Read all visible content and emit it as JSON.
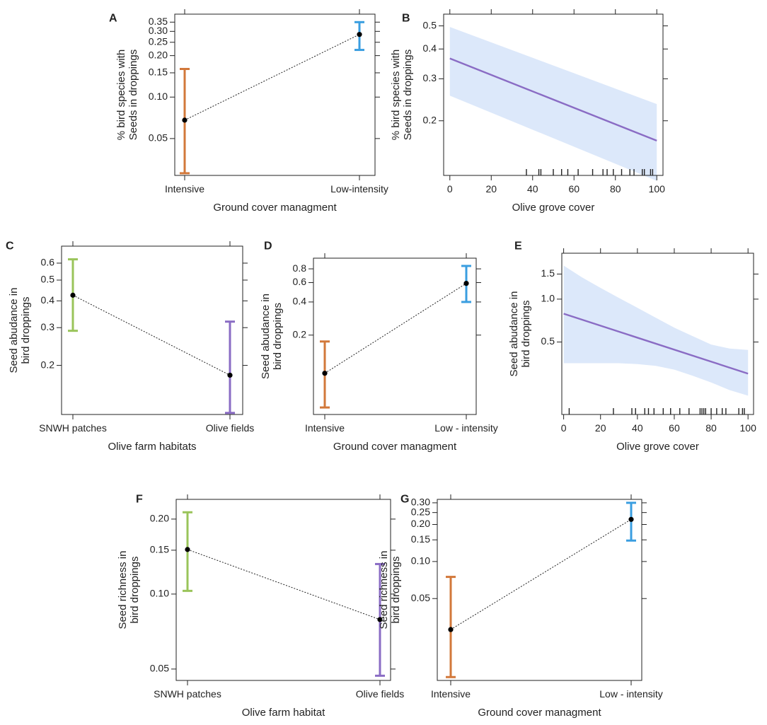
{
  "colors": {
    "orange": "#d2783a",
    "blue": "#3a9ee0",
    "green": "#9ac45a",
    "purple": "#8a6cc4",
    "line": "#8a6cc4",
    "band": "#dce8fa",
    "ink": "#222222"
  },
  "chart_data": [
    {
      "id": "A",
      "panel": "A",
      "type": "errorbar",
      "yscale": "log",
      "xlabel": "Ground cover managment",
      "ylabel_lines": [
        "% bird species with",
        "Seeds in droppings"
      ],
      "categories": [
        "Intensive",
        "Low-intensity"
      ],
      "values": [
        0.068,
        0.285
      ],
      "lower": [
        0.028,
        0.22
      ],
      "upper": [
        0.16,
        0.35
      ],
      "bar_colors": [
        "orange",
        "blue"
      ],
      "ylim": [
        0.027,
        0.4
      ],
      "yticks": [
        0.05,
        0.1,
        0.15,
        0.2,
        0.25,
        0.3,
        0.35
      ],
      "ytick_labels": [
        "0.05",
        "0.10",
        "0.15",
        "0.20",
        "0.25",
        "0.30",
        "0.35"
      ]
    },
    {
      "id": "B",
      "panel": "B",
      "type": "line",
      "yscale": "log",
      "xlabel": "Olive grove cover",
      "ylabel_lines": [
        "% bird species with",
        "Seeds in droppings"
      ],
      "xlim": [
        -3,
        103
      ],
      "xticks": [
        0,
        20,
        40,
        60,
        80,
        100
      ],
      "xtick_labels": [
        "0",
        "20",
        "40",
        "60",
        "80",
        "100"
      ],
      "ylim": [
        0.118,
        0.56
      ],
      "yticks": [
        0.2,
        0.3,
        0.4,
        0.5
      ],
      "ytick_labels": [
        "0.2",
        "0.3",
        "0.4",
        "0.5"
      ],
      "fit": {
        "x": [
          0,
          100
        ],
        "y": [
          0.365,
          0.165
        ]
      },
      "band": {
        "x": [
          0,
          100
        ],
        "lower": [
          0.255,
          0.112
        ],
        "upper": [
          0.495,
          0.235
        ]
      },
      "rug": [
        37,
        43,
        44,
        50,
        54,
        57,
        62,
        69,
        74,
        76,
        79,
        83,
        87,
        89,
        93,
        94,
        97,
        98
      ]
    },
    {
      "id": "C",
      "panel": "C",
      "type": "errorbar",
      "yscale": "log",
      "xlabel": "Olive farm habitats",
      "ylabel_lines": [
        "Seed abudance in",
        "bird droppings"
      ],
      "categories": [
        "SNWH patches",
        "Olive fields"
      ],
      "values": [
        0.425,
        0.18
      ],
      "lower": [
        0.29,
        0.12
      ],
      "upper": [
        0.625,
        0.32
      ],
      "bar_colors": [
        "green",
        "purple"
      ],
      "ylim": [
        0.118,
        0.72
      ],
      "yticks": [
        0.2,
        0.3,
        0.4,
        0.5,
        0.6
      ],
      "ytick_labels": [
        "0.2",
        "0.3",
        "0.4",
        "0.5",
        "0.6"
      ]
    },
    {
      "id": "D",
      "panel": "D",
      "type": "errorbar",
      "yscale": "log",
      "xlabel": "Ground cover managment",
      "ylabel_lines": [
        "Seed abudance in",
        "bird droppings"
      ],
      "categories": [
        "Intensive",
        "Low - intensity"
      ],
      "values": [
        0.09,
        0.59
      ],
      "lower": [
        0.044,
        0.4
      ],
      "upper": [
        0.175,
        0.85
      ],
      "bar_colors": [
        "orange",
        "blue"
      ],
      "ylim": [
        0.038,
        1.0
      ],
      "yticks": [
        0.2,
        0.4,
        0.6,
        0.8
      ],
      "ytick_labels": [
        "0.2",
        "0.4",
        "0.6",
        "0.8"
      ]
    },
    {
      "id": "E",
      "panel": "E",
      "type": "line",
      "yscale": "log",
      "xlabel": "Olive grove cover",
      "ylabel_lines": [
        "Seed abudance in",
        "bird droppings"
      ],
      "xlim": [
        -1,
        103
      ],
      "xticks": [
        0,
        20,
        40,
        60,
        80,
        100
      ],
      "xtick_labels": [
        "0",
        "20",
        "40",
        "60",
        "80",
        "100"
      ],
      "ylim": [
        0.155,
        2.1
      ],
      "yticks": [
        0.5,
        1.0,
        1.5
      ],
      "ytick_labels": [
        "0.5",
        "1.0",
        "1.5"
      ],
      "fit": {
        "x": [
          0,
          100
        ],
        "y": [
          0.79,
          0.3
        ]
      },
      "band": {
        "x": [
          0,
          10,
          20,
          30,
          40,
          50,
          60,
          70,
          80,
          90,
          100
        ],
        "lower": [
          0.355,
          0.355,
          0.355,
          0.355,
          0.35,
          0.34,
          0.32,
          0.29,
          0.26,
          0.23,
          0.21
        ],
        "upper": [
          1.72,
          1.42,
          1.2,
          1.02,
          0.87,
          0.74,
          0.63,
          0.55,
          0.48,
          0.45,
          0.44
        ]
      },
      "rug": [
        3,
        27,
        37,
        39,
        44,
        46,
        49,
        54,
        58,
        63,
        68,
        74,
        75,
        76,
        77,
        80,
        83,
        86,
        88,
        95,
        97,
        98
      ]
    },
    {
      "id": "F",
      "panel": "F",
      "type": "errorbar",
      "yscale": "log",
      "xlabel": "Olive farm habitat",
      "ylabel_lines": [
        "Seed richness in",
        "bird droppings"
      ],
      "categories": [
        "SNWH patches",
        "Olive fields"
      ],
      "values": [
        0.151,
        0.079
      ],
      "lower": [
        0.103,
        0.047
      ],
      "upper": [
        0.213,
        0.132
      ],
      "bar_colors": [
        "green",
        "purple"
      ],
      "ylim": [
        0.045,
        0.24
      ],
      "yticks": [
        0.05,
        0.1,
        0.15,
        0.2
      ],
      "ytick_labels": [
        "0.05",
        "0.10",
        "0.15",
        "0.20"
      ]
    },
    {
      "id": "G",
      "panel": "G",
      "type": "errorbar",
      "yscale": "log",
      "xlabel": "Ground cover managment",
      "ylabel_lines": [
        "Seed richness in",
        "bird droppings"
      ],
      "categories": [
        "Intensive",
        "Low - intensity"
      ],
      "values": [
        0.028,
        0.22
      ],
      "lower": [
        0.0115,
        0.148
      ],
      "upper": [
        0.075,
        0.3
      ],
      "bar_colors": [
        "orange",
        "blue"
      ],
      "ylim": [
        0.0108,
        0.32
      ],
      "yticks": [
        0.05,
        0.1,
        0.15,
        0.2,
        0.25,
        0.3
      ],
      "ytick_labels": [
        "0.05",
        "0.10",
        "0.15",
        "0.20",
        "0.25",
        "0.30"
      ]
    }
  ]
}
